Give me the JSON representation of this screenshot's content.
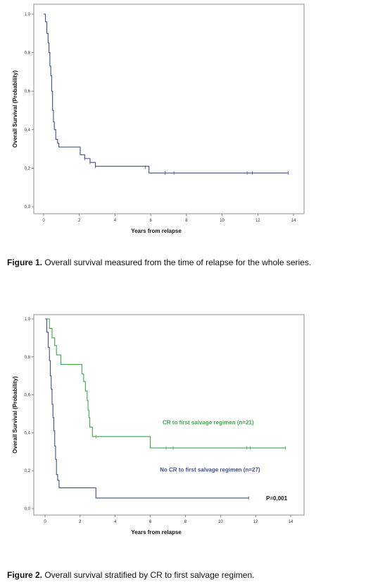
{
  "chart_data": [
    {
      "type": "line",
      "title": "",
      "xlabel": "Years from relapse",
      "ylabel": "Overall Survival (Probability)",
      "xlim": [
        0,
        14
      ],
      "ylim": [
        0,
        1
      ],
      "x_ticks": [
        "0",
        "2",
        "4",
        "6",
        "8",
        "10",
        "12",
        "14"
      ],
      "y_ticks": [
        "0,0",
        "0,2",
        "0,4",
        "0,6",
        "0,8",
        "1,0"
      ],
      "series": [
        {
          "name": "",
          "color": "#3d4f8a",
          "steps": [
            [
              0,
              1.0
            ],
            [
              0.1,
              0.96
            ],
            [
              0.18,
              0.9
            ],
            [
              0.25,
              0.85
            ],
            [
              0.3,
              0.8
            ],
            [
              0.35,
              0.73
            ],
            [
              0.4,
              0.68
            ],
            [
              0.45,
              0.6
            ],
            [
              0.5,
              0.5
            ],
            [
              0.55,
              0.44
            ],
            [
              0.6,
              0.4
            ],
            [
              0.68,
              0.35
            ],
            [
              0.78,
              0.33
            ],
            [
              0.85,
              0.31
            ],
            [
              2.05,
              0.27
            ],
            [
              2.3,
              0.25
            ],
            [
              2.6,
              0.23
            ],
            [
              2.9,
              0.21
            ],
            [
              5.9,
              0.175
            ],
            [
              13.7,
              0.175
            ]
          ],
          "censored": [
            [
              2.3,
              0.25
            ],
            [
              2.6,
              0.23
            ],
            [
              2.9,
              0.21
            ],
            [
              5.7,
              0.205
            ],
            [
              6.8,
              0.175
            ],
            [
              7.3,
              0.175
            ],
            [
              11.4,
              0.175
            ],
            [
              11.7,
              0.175
            ],
            [
              13.7,
              0.175
            ]
          ]
        }
      ],
      "legend": "none",
      "grid": false
    },
    {
      "type": "line",
      "title": "",
      "xlabel": "Years from relapse",
      "ylabel": "Overall Survival (Probability)",
      "xlim": [
        0,
        14
      ],
      "ylim": [
        0,
        1
      ],
      "x_ticks": [
        "0",
        "2",
        "4",
        "6",
        "8",
        "10",
        "12",
        "14"
      ],
      "y_ticks": [
        "0,0",
        "0,2",
        "0,4",
        "0,6",
        "0,8",
        "1,0"
      ],
      "series": [
        {
          "name": "CR to first salvage regimen (n=21)",
          "color": "#3fa64a",
          "steps": [
            [
              0,
              1.0
            ],
            [
              0.25,
              0.95
            ],
            [
              0.4,
              0.9
            ],
            [
              0.55,
              0.86
            ],
            [
              0.65,
              0.81
            ],
            [
              0.9,
              0.76
            ],
            [
              2.1,
              0.71
            ],
            [
              2.2,
              0.67
            ],
            [
              2.3,
              0.62
            ],
            [
              2.4,
              0.57
            ],
            [
              2.45,
              0.52
            ],
            [
              2.5,
              0.48
            ],
            [
              2.55,
              0.43
            ],
            [
              2.7,
              0.38
            ],
            [
              6.0,
              0.32
            ],
            [
              13.7,
              0.32
            ]
          ],
          "censored": [
            [
              2.9,
              0.38
            ],
            [
              6.9,
              0.32
            ],
            [
              7.3,
              0.32
            ],
            [
              11.5,
              0.32
            ],
            [
              11.7,
              0.32
            ],
            [
              13.7,
              0.32
            ]
          ]
        },
        {
          "name": "No CR to first salvage regimen (n=27)",
          "color": "#3d4f8a",
          "steps": [
            [
              0,
              1.0
            ],
            [
              0.1,
              0.93
            ],
            [
              0.18,
              0.85
            ],
            [
              0.25,
              0.78
            ],
            [
              0.3,
              0.7
            ],
            [
              0.35,
              0.63
            ],
            [
              0.4,
              0.55
            ],
            [
              0.45,
              0.48
            ],
            [
              0.5,
              0.41
            ],
            [
              0.55,
              0.33
            ],
            [
              0.6,
              0.26
            ],
            [
              0.65,
              0.18
            ],
            [
              0.72,
              0.15
            ],
            [
              0.8,
              0.11
            ],
            [
              2.9,
              0.056
            ],
            [
              11.6,
              0.056
            ]
          ],
          "censored": [
            [
              11.6,
              0.056
            ]
          ]
        }
      ],
      "annotations": [
        {
          "text": "CR to first salvage regimen (n=21)",
          "x": 9.3,
          "y": 0.445,
          "color": "#3fa64a"
        },
        {
          "text": "No CR to first salvage regimen (n=27)",
          "x": 9.4,
          "y": 0.195,
          "color": "#3d4f8a"
        },
        {
          "text": "P=0,001",
          "x": 13.2,
          "y": 0.045,
          "color": "#111111"
        }
      ],
      "legend": "none",
      "grid": false
    }
  ],
  "captions": {
    "fig1_label": "Figure 1.",
    "fig1_text": " Overall survival measured from the time of relapse for the whole series.",
    "fig2_label": "Figure 2.",
    "fig2_text": " Overall survival stratified by CR to first salvage regimen."
  }
}
